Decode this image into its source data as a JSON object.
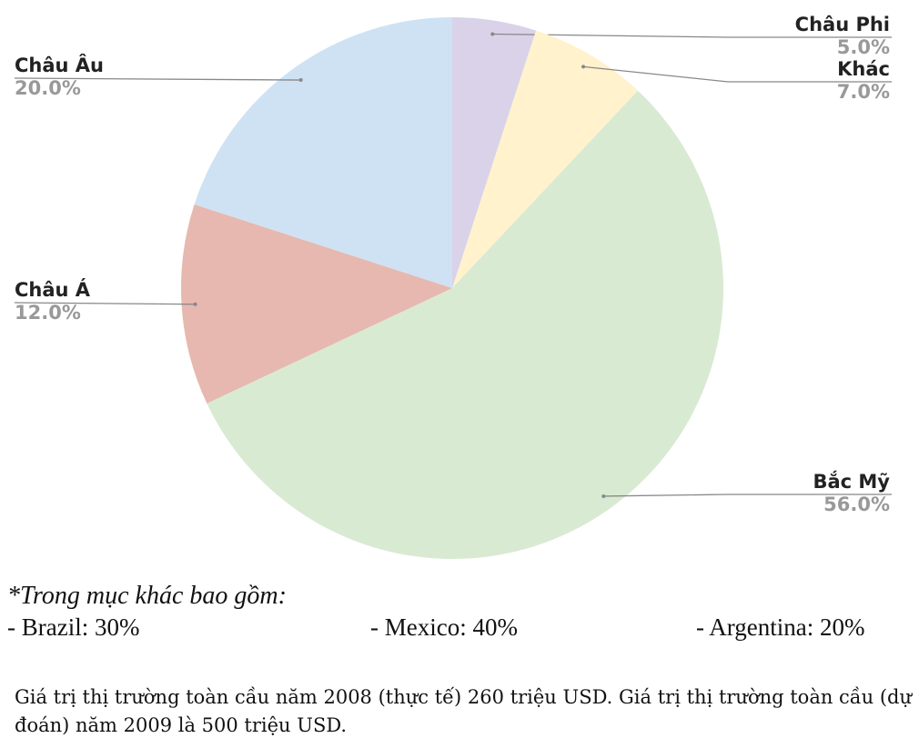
{
  "chart_data": {
    "type": "pie",
    "categories": [
      "Châu Phi",
      "Khác",
      "Bắc Mỹ",
      "Châu Á",
      "Châu Âu"
    ],
    "values": [
      5,
      7,
      56,
      12,
      20
    ],
    "value_labels": [
      "5.0%",
      "7.0%",
      "56.0%",
      "12.0%",
      "20.0%"
    ],
    "colors": [
      "#d9d2e9",
      "#fff2cc",
      "#d9ead3",
      "#e6b8af",
      "#cfe2f3"
    ]
  },
  "notes": {
    "title": "*Trong mục khác bao gồm:",
    "items": [
      "- Brazil: 30%",
      "- Mexico: 40%",
      "- Argentina: 20%"
    ],
    "paragraph": "Giá trị thị trường toàn cầu năm 2008 (thực tế) 260 triệu USD. Giá trị thị trường toàn cầu (dự đoán) năm 2009 là 500 triệu USD."
  }
}
